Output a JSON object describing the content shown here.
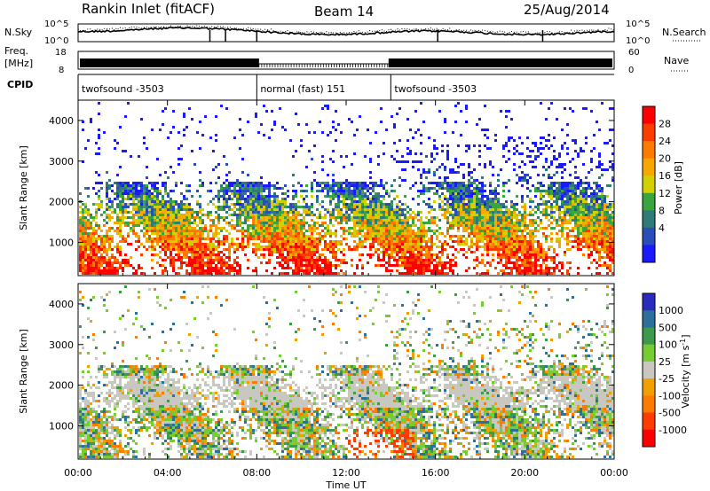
{
  "header": {
    "station": "Rankin Inlet (fitACF)",
    "beam": "Beam 14",
    "date": "25/Aug/2014"
  },
  "noise_panel": {
    "left_label": "N.Sky",
    "right_label": "N.Search",
    "left_ticks": [
      "10^5",
      "10^0"
    ],
    "right_ticks": [
      "10^5",
      "10^0"
    ]
  },
  "freq_panel": {
    "left_label_1": "Freq.",
    "left_label_2": "[MHz]",
    "right_label": "Nave",
    "left_ticks": [
      "18",
      "8"
    ],
    "right_ticks": [
      "60",
      "0"
    ]
  },
  "cpid": {
    "label": "CPID",
    "segments": [
      {
        "name": "twofsound -3503",
        "start_h": 0,
        "end_h": 8
      },
      {
        "name": "normal (fast) 151",
        "start_h": 8,
        "end_h": 14
      },
      {
        "name": "twofsound -3503",
        "start_h": 14,
        "end_h": 24
      }
    ]
  },
  "x_axis": {
    "title": "Time UT",
    "range_h": [
      0,
      24
    ],
    "ticks": [
      "00:00",
      "04:00",
      "08:00",
      "12:00",
      "16:00",
      "20:00",
      "00:00"
    ]
  },
  "chart_data": [
    {
      "type": "heatmap",
      "parameter": "power",
      "ylabel": "Slant Range [km]",
      "ylim": [
        180,
        4500
      ],
      "yticks": [
        "1000",
        "2000",
        "3000",
        "4000"
      ],
      "colorbar": {
        "title": "Power [dB]",
        "tick_labels": [
          "28",
          "24",
          "20",
          "16",
          "12",
          "8",
          "4"
        ],
        "colors": [
          "#ff0000",
          "#ff3c00",
          "#ff7a00",
          "#f7a800",
          "#d4cf00",
          "#39a53c",
          "#2e7b77",
          "#2b4db8",
          "#1a1aff"
        ]
      }
    },
    {
      "type": "heatmap",
      "parameter": "velocity",
      "ylabel": "Slant Range [km]",
      "ylim": [
        180,
        4500
      ],
      "yticks": [
        "1000",
        "2000",
        "3000",
        "4000"
      ],
      "colorbar": {
        "title": "Velocity [m s",
        "title_sup": "-1",
        "title_end": "]",
        "tick_labels": [
          "1000",
          "500",
          "100",
          "25",
          "-25",
          "-100",
          "-500",
          "-1000"
        ],
        "colors": [
          "#2a2ac0",
          "#2e6e9a",
          "#3d9a4a",
          "#77cc33",
          "#c8c8c0",
          "#f0a000",
          "#ff7a00",
          "#ff3c00",
          "#ff0000"
        ]
      }
    }
  ]
}
